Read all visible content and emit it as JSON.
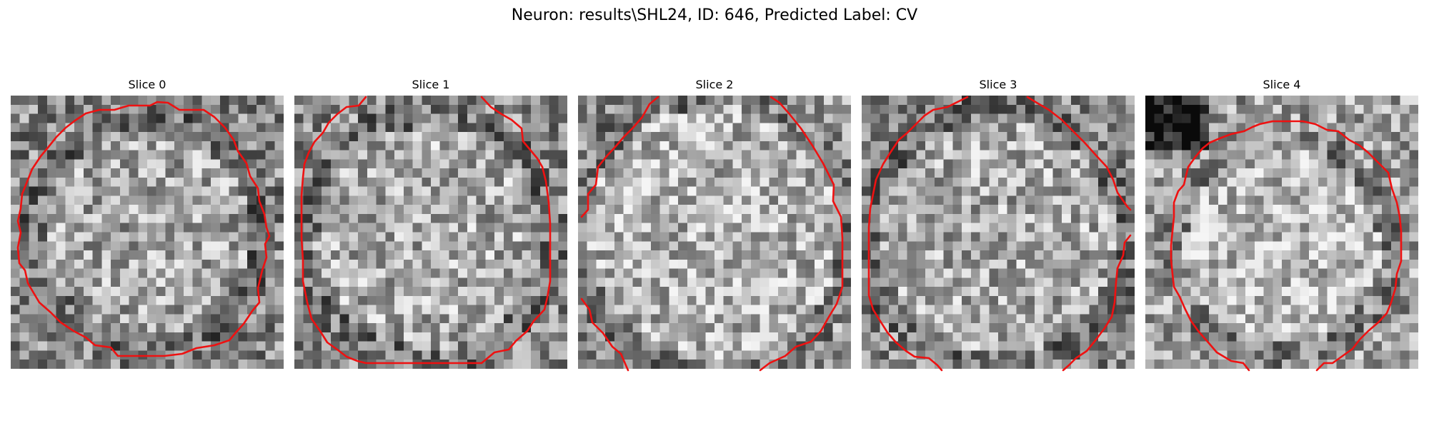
{
  "figure": {
    "title": "Neuron: results\\SHL24, ID: 646, Predicted Label: CV"
  },
  "colors": {
    "contour": "#ee1111",
    "background": "#ffffff",
    "colormap": "gray"
  },
  "panels": [
    {
      "title": "Slice 0",
      "contour": "closed circle",
      "bg_bias": 0
    },
    {
      "title": "Slice 1",
      "contour": "clipped circle",
      "bg_bias": 6
    },
    {
      "title": "Slice 2",
      "contour": "clipped circle",
      "bg_bias": 14
    },
    {
      "title": "Slice 3",
      "contour": "clipped circle",
      "bg_bias": 4
    },
    {
      "title": "Slice 4",
      "contour": "closed circle",
      "bg_bias": 22
    }
  ]
}
